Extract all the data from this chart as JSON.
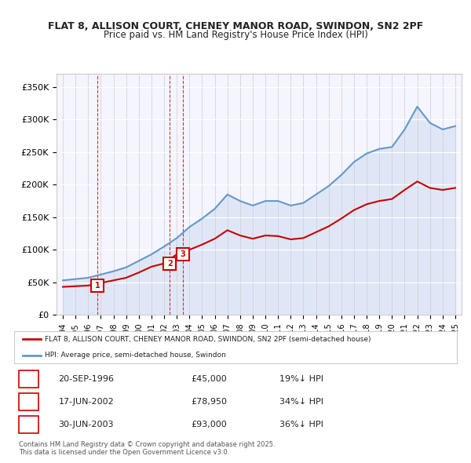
{
  "title_line1": "FLAT 8, ALLISON COURT, CHENEY MANOR ROAD, SWINDON, SN2 2PF",
  "title_line2": "Price paid vs. HM Land Registry's House Price Index (HPI)",
  "hpi_color": "#6699cc",
  "price_color": "#cc0000",
  "bg_color": "#f5f5ff",
  "transactions": [
    {
      "num": 1,
      "date_label": "20-SEP-1996",
      "date_x": 1996.72,
      "price": 45000,
      "pct": "19%↓ HPI"
    },
    {
      "num": 2,
      "date_label": "17-JUN-2002",
      "date_x": 2002.46,
      "price": 78950,
      "pct": "34%↓ HPI"
    },
    {
      "num": 3,
      "date_label": "30-JUN-2003",
      "date_x": 2003.49,
      "price": 93000,
      "pct": "36%↓ HPI"
    }
  ],
  "ylim": [
    0,
    370000
  ],
  "yticks": [
    0,
    50000,
    100000,
    150000,
    200000,
    250000,
    300000,
    350000
  ],
  "ytick_labels": [
    "£0",
    "£50K",
    "£100K",
    "£150K",
    "£200K",
    "£250K",
    "£300K",
    "£350K"
  ],
  "xlim": [
    1993.5,
    2025.5
  ],
  "xticks": [
    1994,
    1995,
    1996,
    1997,
    1998,
    1999,
    2000,
    2001,
    2002,
    2003,
    2004,
    2005,
    2006,
    2007,
    2008,
    2009,
    2010,
    2011,
    2012,
    2013,
    2014,
    2015,
    2016,
    2017,
    2018,
    2019,
    2020,
    2021,
    2022,
    2023,
    2024,
    2025
  ],
  "legend_line1": "FLAT 8, ALLISON COURT, CHENEY MANOR ROAD, SWINDON, SN2 2PF (semi-detached house)",
  "legend_line2": "HPI: Average price, semi-detached house, Swindon",
  "footer": "Contains HM Land Registry data © Crown copyright and database right 2025.\nThis data is licensed under the Open Government Licence v3.0."
}
